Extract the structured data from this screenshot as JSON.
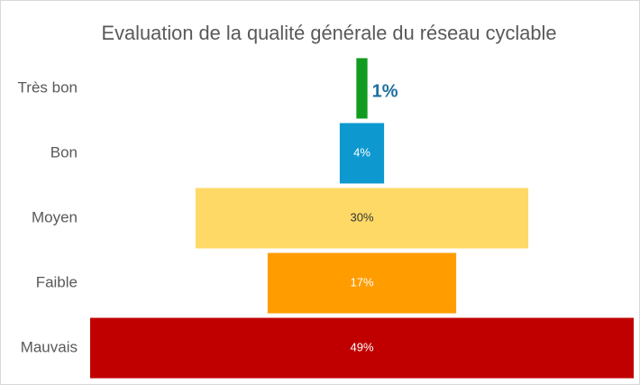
{
  "chart_data": {
    "type": "funnel",
    "title": "Evaluation de la qualité générale du réseau cyclable",
    "categories": [
      "Très bon",
      "Bon",
      "Moyen",
      "Faible",
      "Mauvais"
    ],
    "values": [
      1,
      4,
      30,
      17,
      49
    ],
    "value_labels": [
      "1%",
      "4%",
      "30%",
      "17%",
      "49%"
    ],
    "colors": [
      "#119c1f",
      "#0d98cf",
      "#ffd966",
      "#ff9c00",
      "#c00000"
    ],
    "label_colors": [
      "#1f6fa0",
      "#ffffff",
      "#333333",
      "#ffffff",
      "#ffffff"
    ]
  }
}
